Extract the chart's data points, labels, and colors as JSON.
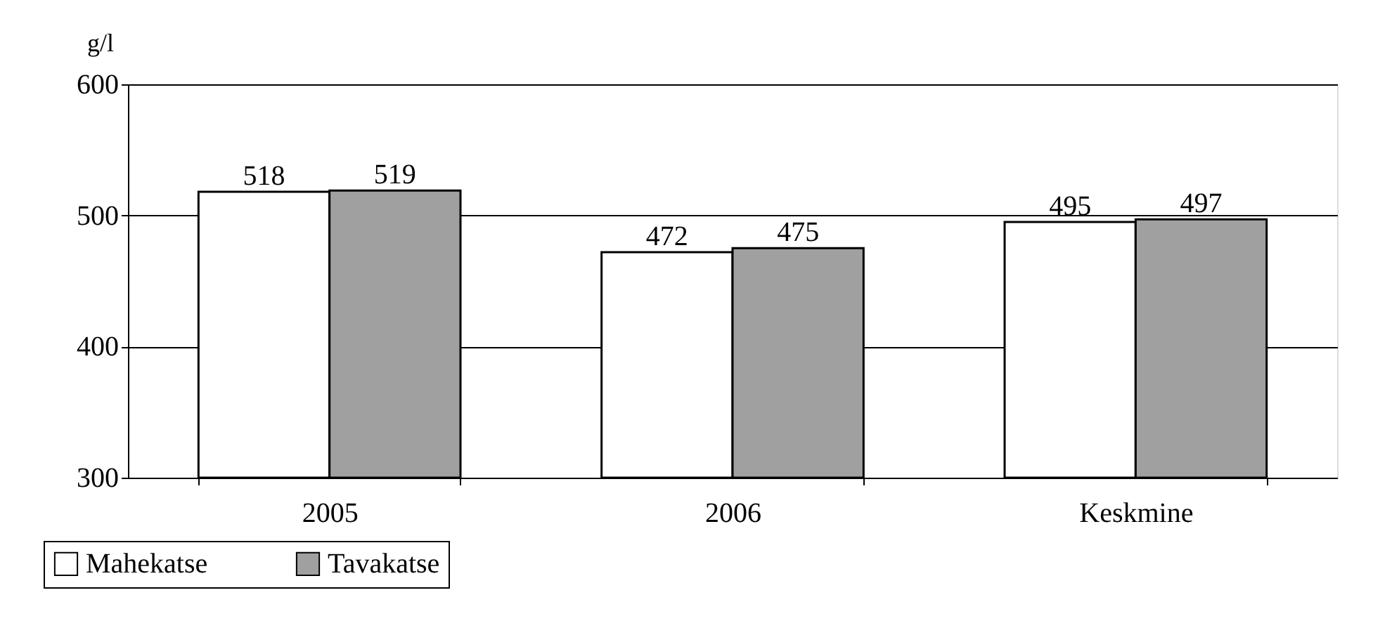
{
  "chart_data": {
    "type": "bar",
    "ylabel": "g/l",
    "categories": [
      "2005",
      "2006",
      "Keskmine"
    ],
    "series": [
      {
        "name": "Mahekatse",
        "color": "#ffffff",
        "values": [
          518,
          472,
          495
        ]
      },
      {
        "name": "Tavakatse",
        "color": "#a0a0a0",
        "values": [
          519,
          475,
          497
        ]
      }
    ],
    "ylim": [
      300,
      600
    ],
    "yticks": [
      300,
      400,
      500,
      600
    ],
    "grid": "y",
    "legend": "bottom left",
    "data_labels": true
  }
}
